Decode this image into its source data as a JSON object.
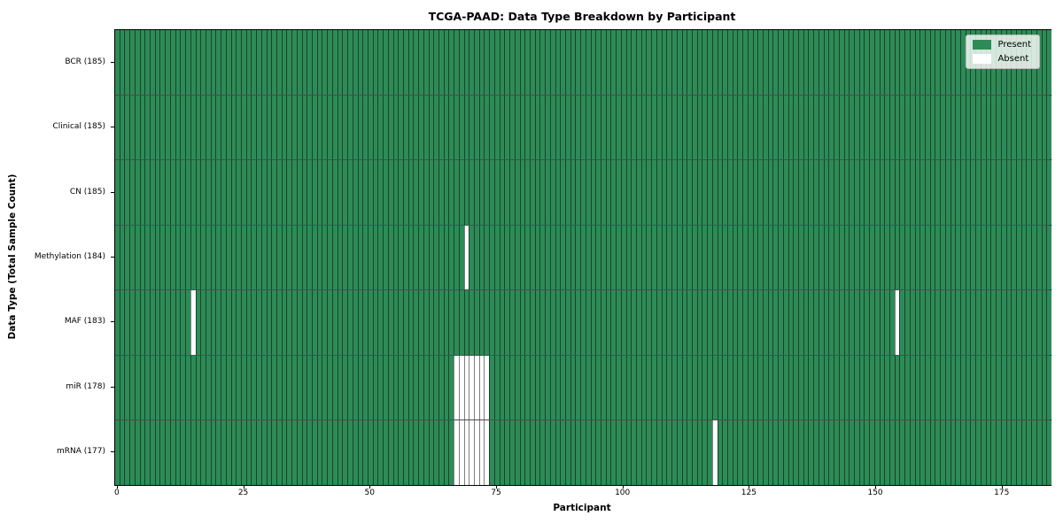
{
  "chart_data": {
    "type": "heatmap",
    "title": "TCGA-PAAD: Data Type Breakdown by Participant",
    "xlabel": "Participant",
    "ylabel": "Data Type (Total Sample Count)",
    "n_participants": 185,
    "x_ticks": [
      0,
      25,
      50,
      75,
      100,
      125,
      150,
      175
    ],
    "grid": "cell-borders-on",
    "legend": {
      "position": "upper-right",
      "entries": [
        {
          "label": "Present",
          "color": "#2e8b57"
        },
        {
          "label": "Absent",
          "color": "#ffffff"
        }
      ]
    },
    "rows": [
      {
        "data_type": "BCR",
        "label": "BCR (185)",
        "total_samples": 185,
        "absent_participants": []
      },
      {
        "data_type": "Clinical",
        "label": "Clinical (185)",
        "total_samples": 185,
        "absent_participants": []
      },
      {
        "data_type": "CN",
        "label": "CN (185)",
        "total_samples": 185,
        "absent_participants": []
      },
      {
        "data_type": "Methylation",
        "label": "Methylation (184)",
        "total_samples": 184,
        "absent_participants": [
          69
        ]
      },
      {
        "data_type": "MAF",
        "label": "MAF (183)",
        "total_samples": 183,
        "absent_participants": [
          15,
          154
        ]
      },
      {
        "data_type": "miR",
        "label": "miR (178)",
        "total_samples": 178,
        "absent_participants": [
          67,
          68,
          69,
          70,
          71,
          72,
          73
        ]
      },
      {
        "data_type": "mRNA",
        "label": "mRNA (177)",
        "total_samples": 177,
        "absent_participants": [
          67,
          68,
          69,
          70,
          71,
          72,
          73,
          118
        ]
      }
    ],
    "colors": {
      "present": "#2e8b57",
      "absent": "#ffffff",
      "cell_edge": "rgba(0,0,0,0.5)",
      "row_separator": "rgba(0,0,0,0.7)",
      "spine": "#000000"
    }
  }
}
